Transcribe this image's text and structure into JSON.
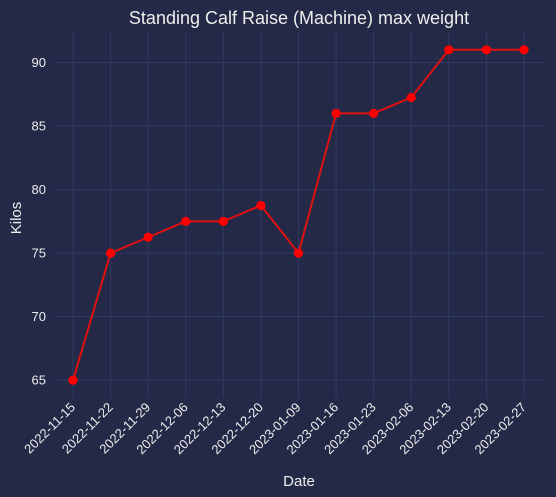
{
  "chart_data": {
    "type": "line",
    "title": "Standing Calf Raise (Machine) max weight",
    "xlabel": "Date",
    "ylabel": "Kilos",
    "x": [
      "2022-11-15",
      "2022-11-22",
      "2022-11-29",
      "2022-12-06",
      "2022-12-13",
      "2022-12-20",
      "2023-01-09",
      "2023-01-16",
      "2023-01-23",
      "2023-02-06",
      "2023-02-13",
      "2023-02-20",
      "2023-02-27"
    ],
    "series": [
      {
        "values": [
          65,
          75,
          76.25,
          77.5,
          77.5,
          78.75,
          75,
          86,
          86,
          87.25,
          91,
          91,
          91
        ],
        "color": "#ff0000"
      }
    ],
    "yticks": [
      65,
      70,
      75,
      80,
      85,
      90
    ],
    "ylim": [
      63.6,
      92.4
    ],
    "grid": true,
    "colors": {
      "background": "#232946",
      "grid": "#2f3b66",
      "text": "#eeeeee",
      "line": "#e01010",
      "marker": "#ff0000"
    }
  }
}
